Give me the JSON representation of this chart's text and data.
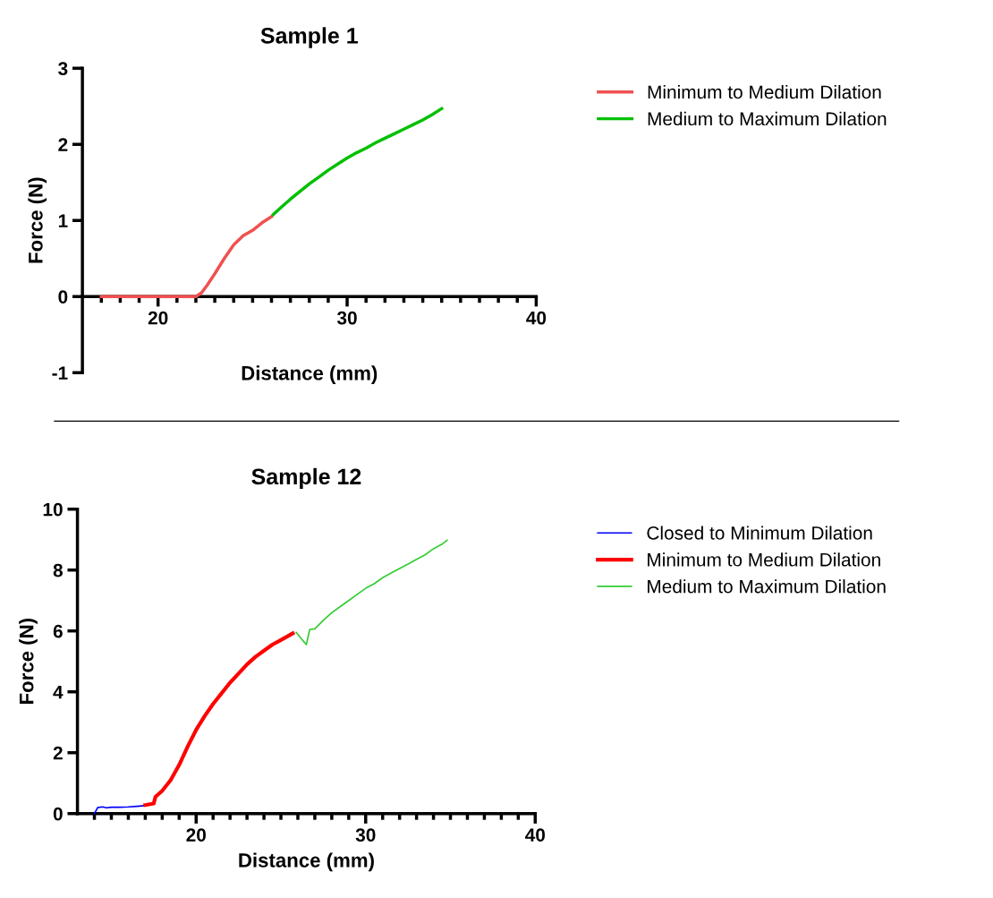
{
  "chart_data": [
    {
      "type": "line",
      "title": "Sample 1",
      "xlabel": "Distance (mm)",
      "ylabel": "Force (N)",
      "xlim": [
        16,
        40
      ],
      "ylim": [
        -1,
        3
      ],
      "xticks": [
        {
          "value": 17,
          "label": null
        },
        {
          "value": 18,
          "label": null
        },
        {
          "value": 19,
          "label": null
        },
        20,
        {
          "value": 21,
          "label": null
        },
        {
          "value": 22,
          "label": null
        },
        {
          "value": 23,
          "label": null
        },
        {
          "value": 24,
          "label": null
        },
        {
          "value": 25,
          "label": null
        },
        {
          "value": 26,
          "label": null
        },
        {
          "value": 27,
          "label": null
        },
        {
          "value": 28,
          "label": null
        },
        {
          "value": 29,
          "label": null
        },
        30,
        {
          "value": 31,
          "label": null
        },
        {
          "value": 32,
          "label": null
        },
        {
          "value": 33,
          "label": null
        },
        {
          "value": 34,
          "label": null
        },
        {
          "value": 35,
          "label": null
        },
        {
          "value": 36,
          "label": null
        },
        {
          "value": 37,
          "label": null
        },
        {
          "value": 38,
          "label": null
        },
        {
          "value": 39,
          "label": null
        },
        40
      ],
      "yticks": [
        -1,
        0,
        1,
        2,
        3
      ],
      "grid": false,
      "legend": "right",
      "marker": "none",
      "line_style": "solid",
      "series": [
        {
          "name": "Minimum to Medium Dilation",
          "color": "#f05050",
          "x": [
            17.0,
            18.0,
            19.0,
            20.0,
            21.0,
            22.0,
            22.3,
            22.6,
            23.0,
            23.5,
            24.0,
            24.5,
            25.0,
            25.5,
            26.0
          ],
          "values": [
            0.0,
            0.0,
            0.0,
            0.0,
            0.0,
            0.0,
            0.05,
            0.15,
            0.3,
            0.5,
            0.68,
            0.8,
            0.87,
            0.97,
            1.05
          ]
        },
        {
          "name": "Medium to Maximum Dilation",
          "color": "#00c000",
          "x": [
            26.1,
            26.5,
            27.0,
            27.5,
            28.0,
            28.5,
            29.0,
            29.5,
            30.0,
            30.5,
            31.0,
            31.5,
            32.0,
            32.5,
            33.0,
            33.5,
            34.0,
            34.5,
            35.0
          ],
          "values": [
            1.08,
            1.17,
            1.28,
            1.38,
            1.48,
            1.57,
            1.66,
            1.74,
            1.82,
            1.89,
            1.95,
            2.02,
            2.08,
            2.14,
            2.2,
            2.26,
            2.32,
            2.39,
            2.47
          ]
        }
      ]
    },
    {
      "type": "line",
      "title": "Sample 12",
      "xlabel": "Distance (mm)",
      "ylabel": "Force (N)",
      "xlim": [
        13,
        40
      ],
      "ylim": [
        0,
        10
      ],
      "xticks": [
        {
          "value": 14,
          "label": null
        },
        {
          "value": 15,
          "label": null
        },
        {
          "value": 16,
          "label": null
        },
        {
          "value": 17,
          "label": null
        },
        {
          "value": 18,
          "label": null
        },
        {
          "value": 19,
          "label": null
        },
        20,
        {
          "value": 21,
          "label": null
        },
        {
          "value": 22,
          "label": null
        },
        {
          "value": 23,
          "label": null
        },
        {
          "value": 24,
          "label": null
        },
        {
          "value": 25,
          "label": null
        },
        {
          "value": 26,
          "label": null
        },
        {
          "value": 27,
          "label": null
        },
        {
          "value": 28,
          "label": null
        },
        {
          "value": 29,
          "label": null
        },
        30,
        {
          "value": 31,
          "label": null
        },
        {
          "value": 32,
          "label": null
        },
        {
          "value": 33,
          "label": null
        },
        {
          "value": 34,
          "label": null
        },
        {
          "value": 35,
          "label": null
        },
        {
          "value": 36,
          "label": null
        },
        {
          "value": 37,
          "label": null
        },
        {
          "value": 38,
          "label": null
        },
        {
          "value": 39,
          "label": null
        },
        40
      ],
      "yticks": [
        0,
        2,
        4,
        6,
        8,
        10
      ],
      "grid": false,
      "legend": "right",
      "marker": "none",
      "line_style": "solid",
      "series": [
        {
          "name": "Closed to Minimum Dilation",
          "color": "#0000ff",
          "x": [
            14.0,
            14.2,
            14.5,
            14.7,
            15.0,
            15.5,
            16.0,
            16.5,
            16.9
          ],
          "values": [
            0.0,
            0.2,
            0.22,
            0.19,
            0.21,
            0.21,
            0.22,
            0.24,
            0.26
          ]
        },
        {
          "name": "Minimum to Medium Dilation",
          "color": "#ff0000",
          "x": [
            17.0,
            17.5,
            17.6,
            18.0,
            18.5,
            19.0,
            19.5,
            20.0,
            20.5,
            21.0,
            21.5,
            22.0,
            22.5,
            23.0,
            23.5,
            24.0,
            24.5,
            25.0,
            25.7
          ],
          "values": [
            0.28,
            0.33,
            0.55,
            0.75,
            1.1,
            1.6,
            2.2,
            2.75,
            3.2,
            3.6,
            3.95,
            4.3,
            4.6,
            4.9,
            5.15,
            5.35,
            5.55,
            5.7,
            5.92
          ]
        },
        {
          "name": "Medium to Maximum Dilation",
          "color": "#33cc33",
          "x": [
            25.9,
            26.2,
            26.5,
            26.7,
            27.0,
            27.5,
            28.0,
            28.5,
            29.0,
            29.5,
            30.0,
            30.5,
            31.0,
            31.5,
            32.0,
            32.5,
            33.0,
            33.5,
            34.0,
            34.5,
            34.8
          ],
          "values": [
            5.95,
            5.75,
            5.55,
            6.05,
            6.07,
            6.35,
            6.6,
            6.8,
            7.0,
            7.2,
            7.4,
            7.55,
            7.75,
            7.9,
            8.05,
            8.2,
            8.35,
            8.5,
            8.7,
            8.85,
            8.98
          ]
        }
      ]
    }
  ]
}
